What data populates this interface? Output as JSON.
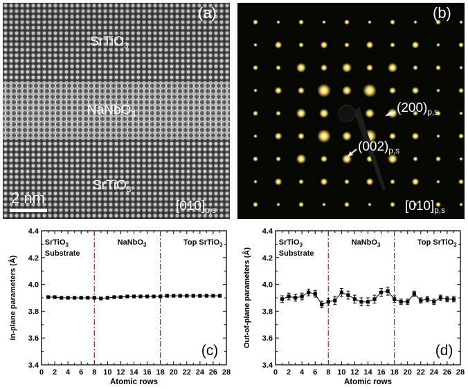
{
  "panel_a": {
    "label": "(a)",
    "layers": [
      {
        "formula": "SrTiO",
        "sub": "3"
      },
      {
        "formula": "NaNbO",
        "sub": "3"
      },
      {
        "formula": "SrTiO",
        "sub": "3"
      }
    ],
    "scale_bar": "2 nm",
    "zone_axis": {
      "main": "[010]",
      "sub": "p,s"
    }
  },
  "panel_b": {
    "label": "(b)",
    "spot_200": {
      "main": "(200)",
      "sub": "p,s"
    },
    "spot_002": {
      "main": "(002)",
      "sub": "p,s"
    },
    "zone_axis": {
      "main": "[010]",
      "sub": "p,s"
    }
  },
  "chart_data": [
    {
      "type": "scatter",
      "panel_label": "(c)",
      "xlabel": "Atomic rows",
      "ylabel": "In-plane parameters (Å)",
      "xlim": [
        0,
        28
      ],
      "ylim": [
        3.4,
        4.4
      ],
      "xticks": [
        "0",
        "2",
        "4",
        "6",
        "8",
        "10",
        "12",
        "14",
        "16",
        "18",
        "20",
        "22",
        "24",
        "26",
        "28"
      ],
      "yticks": [
        "3.4",
        "3.6",
        "3.8",
        "4.0",
        "4.2",
        "4.4"
      ],
      "region_labels": [
        {
          "lines": [
            {
              "text": "SrTiO",
              "sub": "3"
            },
            {
              "text": "Substrate",
              "sub": ""
            }
          ]
        },
        {
          "lines": [
            {
              "text": "NaNbO",
              "sub": "3"
            }
          ]
        },
        {
          "lines": [
            {
              "text": "Top SrTiO",
              "sub": "3"
            }
          ]
        }
      ],
      "boundaries": [
        8,
        18
      ],
      "series": [
        {
          "x": [
            1,
            2,
            3,
            4,
            5,
            6,
            7,
            8,
            9,
            10,
            11,
            12,
            13,
            14,
            15,
            16,
            17,
            18,
            19,
            20,
            21,
            22,
            23,
            24,
            25,
            26,
            27
          ],
          "y": [
            3.905,
            3.905,
            3.9,
            3.9,
            3.9,
            3.9,
            3.9,
            3.9,
            3.895,
            3.9,
            3.905,
            3.905,
            3.91,
            3.91,
            3.91,
            3.91,
            3.91,
            3.91,
            3.915,
            3.915,
            3.915,
            3.915,
            3.915,
            3.915,
            3.915,
            3.915,
            3.915
          ],
          "err": [
            0.008,
            0.008,
            0.008,
            0.008,
            0.008,
            0.008,
            0.008,
            0.008,
            0.008,
            0.008,
            0.008,
            0.008,
            0.008,
            0.008,
            0.008,
            0.008,
            0.008,
            0.008,
            0.008,
            0.008,
            0.008,
            0.008,
            0.008,
            0.008,
            0.008,
            0.008,
            0.008
          ]
        }
      ]
    },
    {
      "type": "scatter",
      "panel_label": "(d)",
      "xlabel": "Atomic rows",
      "ylabel": "Out-of-plane parameters (Å)",
      "xlim": [
        0,
        28
      ],
      "ylim": [
        3.4,
        4.4
      ],
      "xticks": [
        "0",
        "2",
        "4",
        "6",
        "8",
        "10",
        "12",
        "14",
        "16",
        "18",
        "20",
        "22",
        "24",
        "26",
        "28"
      ],
      "yticks": [
        "3.4",
        "3.6",
        "3.8",
        "4.0",
        "4.2",
        "4.4"
      ],
      "region_labels": [
        {
          "lines": [
            {
              "text": "SrTiO",
              "sub": "3"
            },
            {
              "text": "Substrate",
              "sub": ""
            }
          ]
        },
        {
          "lines": [
            {
              "text": "NaNbO",
              "sub": "3"
            }
          ]
        },
        {
          "lines": [
            {
              "text": "Top SrTiO",
              "sub": "3"
            }
          ]
        }
      ],
      "boundaries": [
        8,
        18
      ],
      "series": [
        {
          "x": [
            1,
            2,
            3,
            4,
            5,
            6,
            7,
            8,
            9,
            10,
            11,
            12,
            13,
            14,
            15,
            16,
            17,
            18,
            19,
            20,
            21,
            22,
            23,
            24,
            25,
            26,
            27
          ],
          "y": [
            3.89,
            3.91,
            3.9,
            3.91,
            3.94,
            3.93,
            3.85,
            3.87,
            3.88,
            3.94,
            3.92,
            3.89,
            3.87,
            3.87,
            3.89,
            3.94,
            3.95,
            3.89,
            3.87,
            3.87,
            3.93,
            3.88,
            3.89,
            3.87,
            3.9,
            3.89,
            3.89
          ],
          "err": [
            0.025,
            0.025,
            0.025,
            0.025,
            0.025,
            0.025,
            0.025,
            0.025,
            0.03,
            0.03,
            0.03,
            0.03,
            0.03,
            0.03,
            0.03,
            0.03,
            0.03,
            0.025,
            0.02,
            0.02,
            0.02,
            0.02,
            0.02,
            0.02,
            0.02,
            0.02,
            0.02
          ]
        }
      ]
    }
  ]
}
